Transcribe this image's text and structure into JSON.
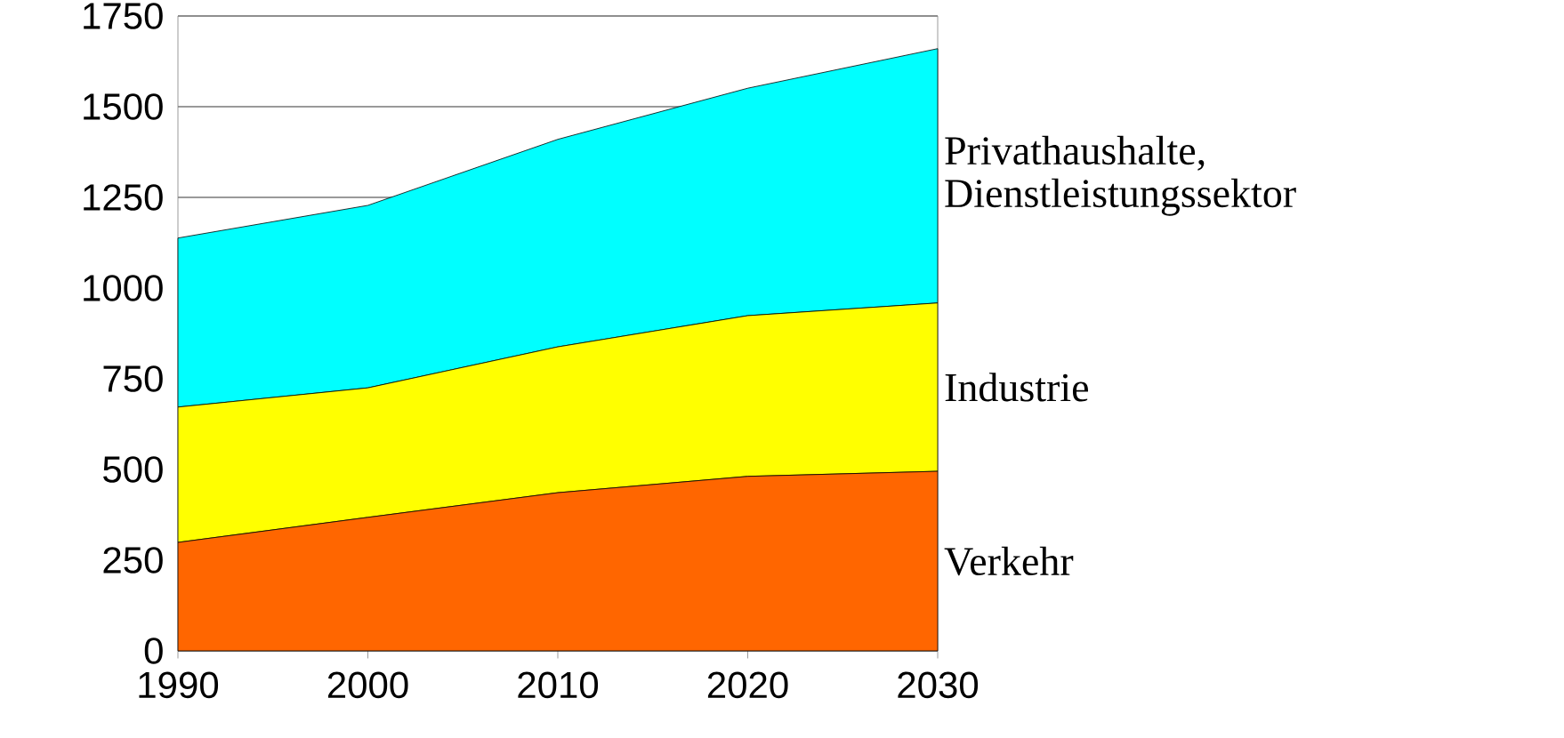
{
  "chart_data": {
    "type": "area",
    "stacked": true,
    "x": [
      1990,
      2000,
      2010,
      2020,
      2030
    ],
    "series": [
      {
        "name": "Verkehr",
        "color": "#ff6600",
        "values": [
          299,
          368,
          436,
          481,
          495
        ]
      },
      {
        "name": "Industrie",
        "color": "#ffff00",
        "values": [
          373,
          357,
          402,
          443,
          464
        ]
      },
      {
        "name": "Privathaushalte, Dienstleistungssektor",
        "color": "#00ffff",
        "values": [
          466,
          503,
          572,
          627,
          701
        ]
      }
    ],
    "xlim": [
      1990,
      2030
    ],
    "xticks": [
      1990,
      2000,
      2010,
      2020,
      2030
    ],
    "ylim": [
      0,
      1750
    ],
    "yticks": [
      0,
      250,
      500,
      750,
      1000,
      1250,
      1500,
      1750
    ],
    "grid": "y"
  }
}
